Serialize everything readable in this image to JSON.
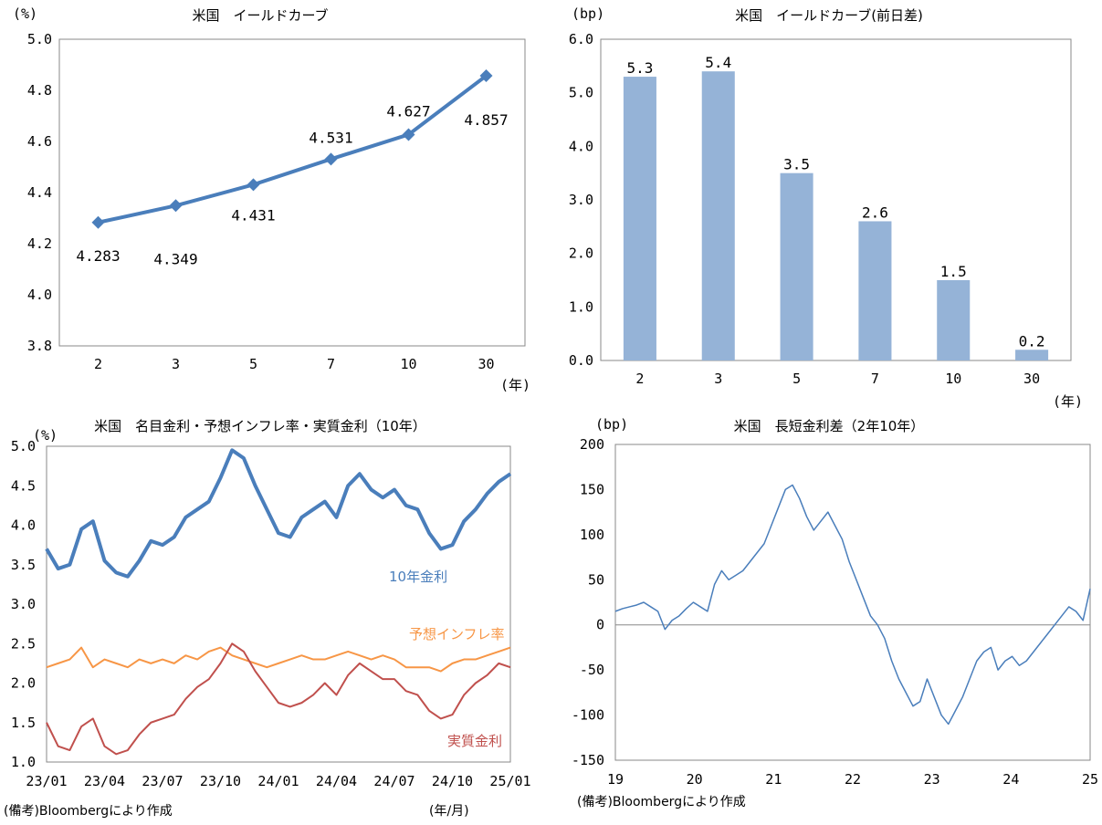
{
  "footnotes": {
    "bottom_left_source": "(備考)Bloombergにより作成",
    "bottom_left_xunit": "(年/月)",
    "bottom_right_source": "(備考)Bloombergにより作成"
  },
  "chart_data": [
    {
      "type": "line",
      "title": "米国　イールドカーブ",
      "ylabel": "(%)",
      "xlabel": "(年)",
      "categories": [
        "2",
        "3",
        "5",
        "7",
        "10",
        "30"
      ],
      "values": [
        4.283,
        4.349,
        4.431,
        4.531,
        4.627,
        4.857
      ],
      "labels": [
        "4.283",
        "4.349",
        "4.431",
        "4.531",
        "4.627",
        "4.857"
      ],
      "ylim": [
        3.8,
        5.0
      ],
      "yticks": [
        "3.8",
        "4.0",
        "4.2",
        "4.4",
        "4.6",
        "4.8",
        "5.0"
      ],
      "color": "#4a7ebb"
    },
    {
      "type": "bar",
      "title": "米国　イールドカーブ(前日差)",
      "ylabel": "(bp)",
      "xlabel": "(年)",
      "categories": [
        "2",
        "3",
        "5",
        "7",
        "10",
        "30"
      ],
      "values": [
        5.3,
        5.4,
        3.5,
        2.6,
        1.5,
        0.2
      ],
      "labels": [
        "5.3",
        "5.4",
        "3.5",
        "2.6",
        "1.5",
        "0.2"
      ],
      "ylim": [
        0,
        6
      ],
      "yticks": [
        "0.0",
        "1.0",
        "2.0",
        "3.0",
        "4.0",
        "5.0",
        "6.0"
      ],
      "color": "#95b3d7"
    },
    {
      "type": "line",
      "title": "米国　名目金利・予想インフレ率・実質金利（10年）",
      "ylabel": "(%)",
      "ylim": [
        1.0,
        5.0
      ],
      "yticks": [
        "1.0",
        "1.5",
        "2.0",
        "2.5",
        "3.0",
        "3.5",
        "4.0",
        "4.5",
        "5.0"
      ],
      "xticks": [
        "23/01",
        "23/04",
        "23/07",
        "23/10",
        "24/01",
        "24/04",
        "24/07",
        "24/10",
        "25/01"
      ],
      "series": [
        {
          "name": "10年金利",
          "color": "#4a7ebb",
          "values": [
            3.7,
            3.45,
            3.5,
            3.95,
            4.05,
            3.55,
            3.4,
            3.35,
            3.55,
            3.8,
            3.75,
            3.85,
            4.1,
            4.2,
            4.3,
            4.6,
            4.95,
            4.85,
            4.5,
            4.2,
            3.9,
            3.85,
            4.1,
            4.2,
            4.3,
            4.1,
            4.5,
            4.65,
            4.45,
            4.35,
            4.45,
            4.25,
            4.2,
            3.9,
            3.7,
            3.75,
            4.05,
            4.2,
            4.4,
            4.55,
            4.65
          ]
        },
        {
          "name": "予想インフレ率",
          "color": "#f79646",
          "values": [
            2.2,
            2.25,
            2.3,
            2.45,
            2.2,
            2.3,
            2.25,
            2.2,
            2.3,
            2.25,
            2.3,
            2.25,
            2.35,
            2.3,
            2.4,
            2.45,
            2.35,
            2.3,
            2.25,
            2.2,
            2.25,
            2.3,
            2.35,
            2.3,
            2.3,
            2.35,
            2.4,
            2.35,
            2.3,
            2.35,
            2.3,
            2.2,
            2.2,
            2.2,
            2.15,
            2.25,
            2.3,
            2.3,
            2.35,
            2.4,
            2.45
          ]
        },
        {
          "name": "実質金利",
          "color": "#c0504d",
          "values": [
            1.5,
            1.2,
            1.15,
            1.45,
            1.55,
            1.2,
            1.1,
            1.15,
            1.35,
            1.5,
            1.55,
            1.6,
            1.8,
            1.95,
            2.05,
            2.25,
            2.5,
            2.4,
            2.15,
            1.95,
            1.75,
            1.7,
            1.75,
            1.85,
            2.0,
            1.85,
            2.1,
            2.25,
            2.15,
            2.05,
            2.05,
            1.9,
            1.85,
            1.65,
            1.55,
            1.6,
            1.85,
            2.0,
            2.1,
            2.25,
            2.2
          ]
        }
      ]
    },
    {
      "type": "line",
      "title": "米国　長短金利差（2年10年）",
      "ylabel": "(bp)",
      "ylim": [
        -150,
        200
      ],
      "yticks": [
        "-150",
        "-100",
        "-50",
        "0",
        "50",
        "100",
        "150",
        "200"
      ],
      "xticks": [
        "19",
        "20",
        "21",
        "22",
        "23",
        "24",
        "25"
      ],
      "series": [
        {
          "name": "長短金利差",
          "color": "#4a7ebb",
          "values": [
            15,
            18,
            20,
            22,
            25,
            20,
            15,
            -5,
            5,
            10,
            18,
            25,
            20,
            15,
            45,
            60,
            50,
            55,
            60,
            70,
            80,
            90,
            110,
            130,
            150,
            155,
            140,
            120,
            105,
            115,
            125,
            110,
            95,
            70,
            50,
            30,
            10,
            0,
            -15,
            -40,
            -60,
            -75,
            -90,
            -85,
            -60,
            -80,
            -100,
            -110,
            -95,
            -80,
            -60,
            -40,
            -30,
            -25,
            -50,
            -40,
            -35,
            -45,
            -40,
            -30,
            -20,
            -10,
            0,
            10,
            20,
            15,
            5,
            40
          ]
        }
      ]
    }
  ]
}
